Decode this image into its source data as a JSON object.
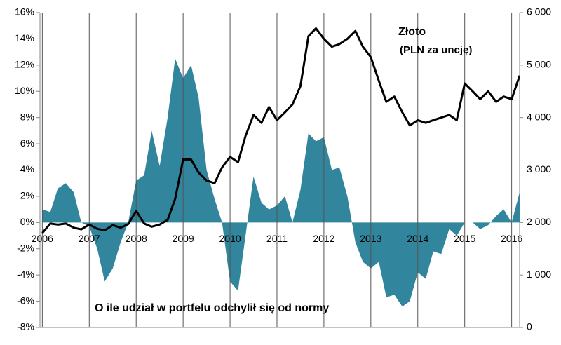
{
  "chart_data": {
    "type": "area-line",
    "annotations": [
      "Złoto",
      "(PLN za uncję)",
      "O ile udział w portfelu odchylił się od normy"
    ],
    "x": [
      2006,
      2006.17,
      2006.33,
      2006.5,
      2006.67,
      2006.83,
      2007,
      2007.17,
      2007.33,
      2007.5,
      2007.67,
      2007.83,
      2008,
      2008.17,
      2008.33,
      2008.5,
      2008.67,
      2008.83,
      2009,
      2009.17,
      2009.33,
      2009.5,
      2009.67,
      2009.83,
      2010,
      2010.17,
      2010.33,
      2010.5,
      2010.67,
      2010.83,
      2011,
      2011.17,
      2011.33,
      2011.5,
      2011.67,
      2011.83,
      2012,
      2012.17,
      2012.33,
      2012.5,
      2012.67,
      2012.83,
      2013,
      2013.17,
      2013.33,
      2013.5,
      2013.67,
      2013.83,
      2014,
      2014.17,
      2014.33,
      2014.5,
      2014.67,
      2014.83,
      2015,
      2015.17,
      2015.33,
      2015.5,
      2015.67,
      2015.83,
      2016,
      2016.17
    ],
    "series": [
      {
        "color": "#31859c",
        "values": [
          1,
          0.8,
          2.6,
          3,
          2.3,
          0,
          -0.3,
          -2,
          -4.5,
          -3.5,
          -1.5,
          0,
          3.2,
          3.6,
          7,
          4.3,
          8,
          12.5,
          11,
          12,
          9.5,
          4,
          1.8,
          0,
          -4.5,
          -5.2,
          -1,
          3.5,
          1.5,
          1,
          1.3,
          2,
          0,
          2.5,
          6.8,
          6.2,
          6.5,
          4,
          4.2,
          2,
          -1.5,
          -3,
          -3.5,
          -3,
          -5.7,
          -5.5,
          -6.4,
          -6,
          -3.8,
          -4.3,
          -2.2,
          -2.4,
          -0.5,
          -1,
          0,
          0,
          -0.5,
          -0.2,
          0.5,
          1,
          0,
          2.3
        ]
      },
      {
        "color": "#000000",
        "axis": "y2",
        "values": [
          1800,
          1980,
          1960,
          1980,
          1900,
          1870,
          1960,
          1880,
          1850,
          1950,
          1900,
          1970,
          2220,
          1980,
          1920,
          1960,
          2050,
          2450,
          3200,
          3200,
          2950,
          2800,
          2750,
          3050,
          3250,
          3150,
          3650,
          4050,
          3900,
          4200,
          3950,
          4100,
          4250,
          4600,
          5550,
          5700,
          5500,
          5350,
          5400,
          5500,
          5650,
          5350,
          5150,
          4700,
          4300,
          4400,
          4100,
          3850,
          3950,
          3900,
          3950,
          4000,
          4050,
          3950,
          4650,
          4500,
          4350,
          4500,
          4300,
          4400,
          4350,
          4800
        ]
      }
    ],
    "xlim": [
      2005.95,
      2016.17
    ],
    "xticks": [
      2006,
      2007,
      2008,
      2009,
      2010,
      2011,
      2012,
      2013,
      2014,
      2015,
      2016
    ],
    "ylim": [
      -8,
      16
    ],
    "yticks": [
      {
        "value": -8,
        "label": "-8%"
      },
      {
        "value": -6,
        "label": "-6%"
      },
      {
        "value": -4,
        "label": "-4%"
      },
      {
        "value": -2,
        "label": "-2%"
      },
      {
        "value": 0,
        "label": "0%"
      },
      {
        "value": 2,
        "label": "2%"
      },
      {
        "value": 4,
        "label": "4%"
      },
      {
        "value": 6,
        "label": "6%"
      },
      {
        "value": 8,
        "label": "8%"
      },
      {
        "value": 10,
        "label": "10%"
      },
      {
        "value": 12,
        "label": "12%"
      },
      {
        "value": 14,
        "label": "14%"
      },
      {
        "value": 16,
        "label": "16%"
      }
    ],
    "y2lim": [
      0,
      6000
    ],
    "y2ticks": [
      0,
      {
        "value": 1000,
        "label": "1 000"
      },
      {
        "value": 2000,
        "label": "2 000"
      },
      {
        "value": 3000,
        "label": "3 000"
      },
      {
        "value": 4000,
        "label": "4 000"
      },
      {
        "value": 5000,
        "label": "5 000"
      },
      {
        "value": 6000,
        "label": "6 000"
      }
    ],
    "grid": "x"
  }
}
